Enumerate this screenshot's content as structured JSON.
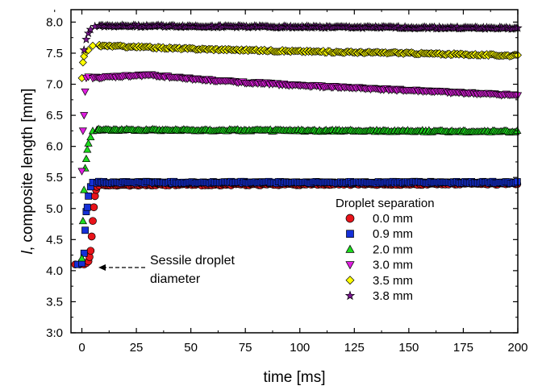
{
  "chart_data": {
    "type": "scatter",
    "xlabel": "time  [ms]",
    "ylabel_symbol": "l",
    "ylabel_rest": ", composite length [mm]",
    "xlim": [
      -5,
      200
    ],
    "ylim": [
      3.0,
      8.2
    ],
    "xticks": [
      0,
      25,
      50,
      75,
      100,
      125,
      150,
      175,
      200
    ],
    "yticks": [
      3.0,
      3.5,
      4.0,
      4.5,
      5.0,
      5.5,
      6.0,
      6.5,
      7.0,
      7.5,
      8.0
    ],
    "grid": false,
    "legend": {
      "title": "Droplet separation",
      "placement": "lower-right"
    },
    "annotation": {
      "line1": "Sessile droplet",
      "line2": "diameter",
      "arrow_to": [
        2,
        4.12
      ]
    },
    "series": [
      {
        "name": "0.0 mm",
        "marker": "circle",
        "color": "#e8141a",
        "rise": [
          [
            -3,
            4.1
          ],
          [
            -1,
            4.1
          ],
          [
            1,
            4.1
          ],
          [
            2,
            4.12
          ],
          [
            3,
            4.15
          ],
          [
            3.5,
            4.22
          ],
          [
            4,
            4.32
          ],
          [
            4.5,
            4.55
          ],
          [
            5,
            4.8
          ],
          [
            5.5,
            5.02
          ],
          [
            6,
            5.2
          ],
          [
            6.5,
            5.3
          ],
          [
            7,
            5.35
          ],
          [
            8,
            5.37
          ],
          [
            10,
            5.38
          ]
        ],
        "plateau": [
          [
            10,
            5.38
          ],
          [
            200,
            5.4
          ]
        ]
      },
      {
        "name": "0.9 mm",
        "marker": "square",
        "color": "#1530d8",
        "rise": [
          [
            -2,
            4.1
          ],
          [
            0,
            4.12
          ],
          [
            1,
            4.28
          ],
          [
            1.5,
            4.65
          ],
          [
            2,
            4.95
          ],
          [
            2.5,
            5.02
          ],
          [
            3,
            5.2
          ],
          [
            4,
            5.35
          ],
          [
            5,
            5.42
          ],
          [
            7,
            5.42
          ]
        ],
        "plateau": [
          [
            7,
            5.42
          ],
          [
            200,
            5.42
          ]
        ]
      },
      {
        "name": "2.0 mm",
        "marker": "triangle-up",
        "color": "#1ddc1d",
        "rise": [
          [
            0,
            4.2
          ],
          [
            0.5,
            4.8
          ],
          [
            1,
            5.3
          ],
          [
            1.5,
            5.65
          ],
          [
            2,
            5.8
          ],
          [
            2.5,
            5.95
          ],
          [
            3,
            6.05
          ],
          [
            4,
            6.15
          ],
          [
            5,
            6.25
          ],
          [
            7,
            6.27
          ]
        ],
        "plateau": [
          [
            7,
            6.27
          ],
          [
            200,
            6.24
          ]
        ]
      },
      {
        "name": "3.0 mm",
        "marker": "triangle-down",
        "color": "#e01ee0",
        "rise": [
          [
            0,
            5.6
          ],
          [
            0.5,
            6.25
          ],
          [
            1,
            6.5
          ],
          [
            1.5,
            6.88
          ],
          [
            2,
            7.1
          ],
          [
            3,
            7.12
          ],
          [
            5,
            7.1
          ]
        ],
        "plateau": [
          [
            5,
            7.1
          ],
          [
            30,
            7.15
          ],
          [
            60,
            7.06
          ],
          [
            100,
            6.98
          ],
          [
            150,
            6.9
          ],
          [
            200,
            6.82
          ]
        ]
      },
      {
        "name": "3.5 mm",
        "marker": "diamond",
        "color": "#ffff00",
        "rise": [
          [
            0,
            7.1
          ],
          [
            0.5,
            7.35
          ],
          [
            1,
            7.45
          ],
          [
            2,
            7.52
          ],
          [
            3,
            7.55
          ],
          [
            5,
            7.62
          ],
          [
            8,
            7.62
          ]
        ],
        "plateau": [
          [
            8,
            7.62
          ],
          [
            50,
            7.57
          ],
          [
            100,
            7.53
          ],
          [
            150,
            7.5
          ],
          [
            200,
            7.46
          ]
        ]
      },
      {
        "name": "3.8 mm",
        "marker": "star",
        "color": "#7a1590",
        "rise": [
          [
            1,
            7.55
          ],
          [
            2,
            7.72
          ],
          [
            3,
            7.82
          ],
          [
            4,
            7.88
          ],
          [
            6,
            7.93
          ],
          [
            8,
            7.94
          ]
        ],
        "plateau": [
          [
            8,
            7.94
          ],
          [
            200,
            7.9
          ]
        ]
      }
    ]
  }
}
